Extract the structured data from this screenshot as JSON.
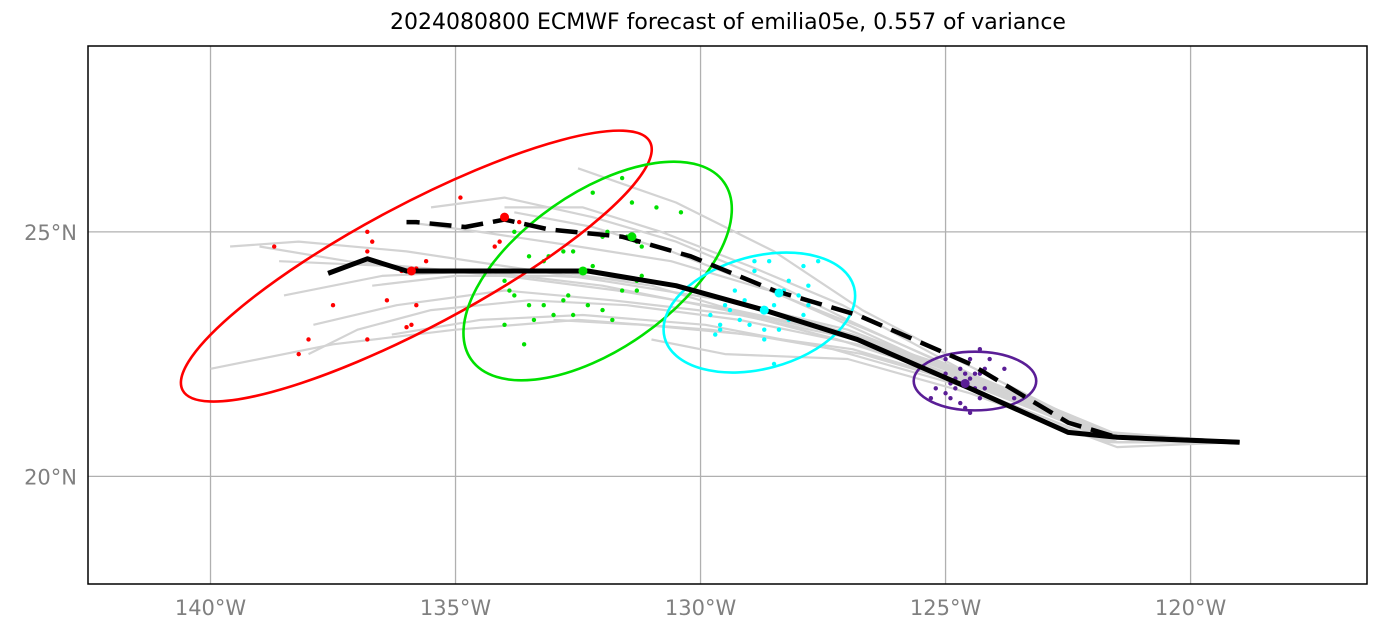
{
  "chart_data": {
    "type": "line",
    "title": "2024080800 ECMWF forecast of emilia05e, 0.557 of variance",
    "xlim": [
      -142.5,
      -116.4
    ],
    "ylim": [
      17.8,
      28.8
    ],
    "x_ticks": [
      -140,
      -135,
      -130,
      -125,
      -120
    ],
    "x_tick_labels": [
      "140°W",
      "135°W",
      "130°W",
      "125°W",
      "120°W"
    ],
    "y_ticks": [
      20,
      25
    ],
    "y_tick_labels": [
      "20°N",
      "25°N"
    ],
    "grid": true,
    "colors": {
      "ensemble": "#d3d3d3",
      "mean_track": "#000000",
      "t1": "#ff0000",
      "t2": "#00e000",
      "t3": "#00ffff",
      "t4": "#5a1e96",
      "grid": "#b0b0b0"
    },
    "ensemble_tracks": [
      [
        [
          -119.0,
          20.7
        ],
        [
          -121.6,
          20.8
        ],
        [
          -124.5,
          22.0
        ],
        [
          -127.0,
          22.9
        ],
        [
          -129.0,
          23.3
        ],
        [
          -131.0,
          23.9
        ],
        [
          -133.0,
          24.2
        ],
        [
          -135.0,
          24.2
        ],
        [
          -137.2,
          24.4
        ],
        [
          -139.0,
          24.7
        ]
      ],
      [
        [
          -119.0,
          20.7
        ],
        [
          -121.5,
          20.7
        ],
        [
          -124.3,
          21.9
        ],
        [
          -126.8,
          22.7
        ],
        [
          -129.2,
          23.2
        ],
        [
          -131.5,
          23.5
        ],
        [
          -133.5,
          23.6
        ],
        [
          -135.5,
          23.4
        ],
        [
          -137.0,
          23.0
        ],
        [
          -138.0,
          22.5
        ]
      ],
      [
        [
          -119.0,
          20.7
        ],
        [
          -121.7,
          20.9
        ],
        [
          -124.6,
          22.1
        ],
        [
          -127.0,
          23.2
        ],
        [
          -128.6,
          24.0
        ],
        [
          -130.5,
          24.8
        ],
        [
          -132.2,
          25.3
        ],
        [
          -134.0,
          25.7
        ],
        [
          -135.5,
          25.5
        ]
      ],
      [
        [
          -119.0,
          20.7
        ],
        [
          -121.8,
          20.9
        ],
        [
          -124.6,
          22.3
        ],
        [
          -126.7,
          23.4
        ],
        [
          -128.5,
          24.6
        ],
        [
          -130.5,
          25.6
        ],
        [
          -132.5,
          26.3
        ]
      ],
      [
        [
          -119.0,
          20.7
        ],
        [
          -121.4,
          20.8
        ],
        [
          -124.4,
          21.9
        ],
        [
          -127.2,
          22.8
        ],
        [
          -129.5,
          23.4
        ],
        [
          -132.0,
          23.9
        ],
        [
          -134.5,
          24.2
        ],
        [
          -136.5,
          24.1
        ],
        [
          -138.5,
          23.7
        ]
      ],
      [
        [
          -119.0,
          20.7
        ],
        [
          -121.6,
          20.7
        ],
        [
          -124.2,
          21.8
        ],
        [
          -126.9,
          22.6
        ],
        [
          -129.8,
          23.0
        ],
        [
          -132.5,
          23.2
        ],
        [
          -135.0,
          23.0
        ],
        [
          -137.5,
          22.7
        ],
        [
          -140.0,
          22.2
        ]
      ],
      [
        [
          -119.0,
          20.7
        ],
        [
          -121.5,
          20.6
        ],
        [
          -124.5,
          21.7
        ],
        [
          -127.0,
          22.4
        ],
        [
          -129.5,
          22.5
        ],
        [
          -131.0,
          22.8
        ]
      ],
      [
        [
          -119.0,
          20.7
        ],
        [
          -121.7,
          20.8
        ],
        [
          -124.4,
          22.0
        ],
        [
          -127.0,
          23.0
        ],
        [
          -129.5,
          23.6
        ],
        [
          -132.0,
          24.0
        ],
        [
          -134.0,
          24.3
        ],
        [
          -136.0,
          24.6
        ],
        [
          -138.2,
          24.8
        ],
        [
          -139.6,
          24.7
        ]
      ],
      [
        [
          -119.0,
          20.7
        ],
        [
          -121.6,
          20.8
        ],
        [
          -124.3,
          22.0
        ],
        [
          -126.6,
          23.0
        ],
        [
          -128.6,
          23.8
        ],
        [
          -130.6,
          24.4
        ],
        [
          -132.5,
          24.7
        ],
        [
          -134.5,
          25.0
        ],
        [
          -136.0,
          25.2
        ]
      ],
      [
        [
          -119.0,
          20.7
        ],
        [
          -121.5,
          20.7
        ],
        [
          -124.4,
          21.9
        ],
        [
          -126.8,
          22.8
        ],
        [
          -129.2,
          23.3
        ],
        [
          -131.8,
          23.6
        ],
        [
          -134.0,
          23.8
        ],
        [
          -136.2,
          23.5
        ],
        [
          -137.9,
          23.1
        ]
      ],
      [
        [
          -119.0,
          20.7
        ],
        [
          -121.8,
          20.8
        ],
        [
          -124.7,
          22.2
        ],
        [
          -127.1,
          23.5
        ],
        [
          -129.0,
          24.3
        ],
        [
          -130.8,
          25.0
        ],
        [
          -132.4,
          25.5
        ],
        [
          -134.0,
          25.5
        ]
      ],
      [
        [
          -119.0,
          20.7
        ],
        [
          -121.6,
          20.9
        ],
        [
          -124.5,
          22.1
        ],
        [
          -126.9,
          22.9
        ],
        [
          -129.0,
          23.5
        ],
        [
          -131.0,
          24.0
        ],
        [
          -133.0,
          24.1
        ],
        [
          -135.0,
          24.1
        ],
        [
          -136.7,
          23.9
        ]
      ],
      [
        [
          -119.0,
          20.7
        ],
        [
          -121.7,
          20.7
        ],
        [
          -124.5,
          21.8
        ],
        [
          -127.3,
          22.6
        ],
        [
          -129.9,
          23.1
        ],
        [
          -132.4,
          23.3
        ],
        [
          -134.5,
          23.2
        ],
        [
          -136.3,
          22.9
        ]
      ],
      [
        [
          -119.0,
          20.7
        ],
        [
          -121.6,
          20.8
        ],
        [
          -124.6,
          22.0
        ],
        [
          -127.0,
          23.1
        ],
        [
          -128.8,
          23.9
        ],
        [
          -130.6,
          24.6
        ],
        [
          -132.2,
          25.1
        ],
        [
          -133.8,
          25.4
        ]
      ],
      [
        [
          -119.0,
          20.7
        ],
        [
          -121.5,
          20.7
        ],
        [
          -124.3,
          21.8
        ],
        [
          -126.7,
          22.5
        ],
        [
          -129.0,
          22.9
        ],
        [
          -131.2,
          23.1
        ],
        [
          -133.0,
          23.2
        ]
      ],
      [
        [
          -119.0,
          20.7
        ],
        [
          -121.6,
          20.8
        ],
        [
          -124.4,
          22.0
        ],
        [
          -126.9,
          22.9
        ],
        [
          -129.3,
          23.4
        ],
        [
          -131.7,
          23.8
        ],
        [
          -134.0,
          24.1
        ],
        [
          -136.3,
          24.3
        ],
        [
          -138.6,
          24.4
        ]
      ]
    ],
    "mean_track": [
      [
        -119.0,
        20.7
      ],
      [
        -121.5,
        20.8
      ],
      [
        -122.5,
        20.9
      ],
      [
        -124.5,
        21.8
      ],
      [
        -126.8,
        22.8
      ],
      [
        -128.7,
        23.4
      ],
      [
        -130.5,
        23.9
      ],
      [
        -132.3,
        24.2
      ],
      [
        -134.0,
        24.2
      ],
      [
        -136.0,
        24.2
      ],
      [
        -136.8,
        24.45
      ],
      [
        -137.6,
        24.15
      ]
    ],
    "control_track": [
      [
        -119.0,
        20.7
      ],
      [
        -121.5,
        20.8
      ],
      [
        -122.5,
        21.1
      ],
      [
        -124.5,
        22.3
      ],
      [
        -126.8,
        23.3
      ],
      [
        -128.5,
        23.8
      ],
      [
        -130.2,
        24.5
      ],
      [
        -131.6,
        24.9
      ],
      [
        -133.1,
        25.05
      ],
      [
        -134.0,
        25.25
      ],
      [
        -134.8,
        25.1
      ],
      [
        -135.8,
        25.2
      ],
      [
        -136.0,
        25.2
      ]
    ],
    "mean_positions": [
      {
        "lon": -135.9,
        "lat": 24.2,
        "color": "#ff0000"
      },
      {
        "lon": -132.4,
        "lat": 24.2,
        "color": "#00e000"
      },
      {
        "lon": -128.7,
        "lat": 23.4,
        "color": "#00ffff"
      },
      {
        "lon": -124.6,
        "lat": 21.9,
        "color": "#5a1e96"
      }
    ],
    "control_positions": [
      {
        "lon": -134.0,
        "lat": 25.3,
        "color": "#ff0000"
      },
      {
        "lon": -131.4,
        "lat": 24.9,
        "color": "#00e000"
      },
      {
        "lon": -128.4,
        "lat": 23.75,
        "color": "#00ffff"
      }
    ],
    "ellipses": [
      {
        "lon": -135.8,
        "lat": 24.3,
        "a": 5.4,
        "b": 1.25,
        "angle_deg": 28,
        "color": "#ff0000"
      },
      {
        "lon": -132.1,
        "lat": 24.2,
        "a": 3.15,
        "b": 1.6,
        "angle_deg": 35,
        "color": "#00e000"
      },
      {
        "lon": -128.8,
        "lat": 23.35,
        "a": 2.0,
        "b": 1.15,
        "angle_deg": 15,
        "color": "#00ffff"
      },
      {
        "lon": -124.4,
        "lat": 21.95,
        "a": 1.25,
        "b": 0.6,
        "angle_deg": 0,
        "color": "#5a1e96"
      }
    ],
    "member_points": [
      {
        "color": "#ff0000",
        "points": [
          [
            -138.7,
            24.7
          ],
          [
            -136.8,
            25.0
          ],
          [
            -136.7,
            24.8
          ],
          [
            -136.8,
            24.6
          ],
          [
            -135.8,
            24.25
          ],
          [
            -136.1,
            24.2
          ],
          [
            -135.6,
            24.4
          ],
          [
            -134.9,
            25.7
          ],
          [
            -133.7,
            25.2
          ],
          [
            -134.2,
            24.7
          ],
          [
            -134.1,
            24.8
          ],
          [
            -136.4,
            23.6
          ],
          [
            -137.5,
            23.5
          ],
          [
            -135.9,
            23.1
          ],
          [
            -136.0,
            23.05
          ],
          [
            -135.8,
            23.5
          ],
          [
            -136.8,
            22.8
          ],
          [
            -138.0,
            22.8
          ],
          [
            -138.2,
            22.5
          ]
        ]
      },
      {
        "color": "#00e000",
        "points": [
          [
            -133.8,
            25.0
          ],
          [
            -133.5,
            24.5
          ],
          [
            -133.2,
            24.4
          ],
          [
            -133.1,
            24.5
          ],
          [
            -132.8,
            24.6
          ],
          [
            -132.6,
            24.6
          ],
          [
            -133.9,
            23.8
          ],
          [
            -133.8,
            23.7
          ],
          [
            -134.0,
            24.0
          ],
          [
            -133.5,
            23.5
          ],
          [
            -133.2,
            23.5
          ],
          [
            -132.7,
            23.7
          ],
          [
            -132.8,
            23.6
          ],
          [
            -133.0,
            23.3
          ],
          [
            -132.6,
            23.3
          ],
          [
            -133.4,
            23.2
          ],
          [
            -134.0,
            23.1
          ],
          [
            -133.6,
            22.7
          ],
          [
            -132.3,
            23.5
          ],
          [
            -132.0,
            23.4
          ],
          [
            -131.8,
            23.2
          ],
          [
            -132.2,
            24.3
          ],
          [
            -131.3,
            24.0
          ],
          [
            -131.2,
            24.1
          ],
          [
            -131.6,
            23.8
          ],
          [
            -131.3,
            23.8
          ],
          [
            -131.5,
            24.9
          ],
          [
            -131.9,
            25.0
          ],
          [
            -132.0,
            24.9
          ],
          [
            -131.3,
            24.8
          ],
          [
            -131.2,
            24.7
          ],
          [
            -131.4,
            25.6
          ],
          [
            -130.9,
            25.5
          ],
          [
            -130.4,
            25.4
          ],
          [
            -131.6,
            26.1
          ],
          [
            -132.2,
            25.8
          ]
        ]
      },
      {
        "color": "#00ffff",
        "points": [
          [
            -129.7,
            22.9
          ],
          [
            -129.6,
            23.1
          ],
          [
            -129.8,
            23.3
          ],
          [
            -129.4,
            23.4
          ],
          [
            -129.2,
            23.2
          ],
          [
            -129.0,
            23.1
          ],
          [
            -129.1,
            23.6
          ],
          [
            -128.9,
            24.2
          ],
          [
            -128.9,
            24.4
          ],
          [
            -128.6,
            24.4
          ],
          [
            -128.2,
            24.0
          ],
          [
            -128.0,
            23.7
          ],
          [
            -127.8,
            23.9
          ],
          [
            -127.9,
            24.3
          ],
          [
            -127.6,
            24.4
          ],
          [
            -127.8,
            23.5
          ],
          [
            -127.9,
            23.3
          ],
          [
            -128.2,
            23.2
          ],
          [
            -128.4,
            23.0
          ],
          [
            -128.7,
            23.0
          ],
          [
            -128.7,
            22.8
          ],
          [
            -128.5,
            23.5
          ],
          [
            -128.5,
            22.3
          ],
          [
            -129.5,
            23.5
          ],
          [
            -129.3,
            23.8
          ],
          [
            -128.3,
            23.8
          ],
          [
            -129.6,
            23.0
          ]
        ]
      },
      {
        "color": "#5a1e96",
        "points": [
          [
            -124.9,
            21.6
          ],
          [
            -124.7,
            21.5
          ],
          [
            -124.5,
            21.3
          ],
          [
            -124.6,
            21.4
          ],
          [
            -125.0,
            21.7
          ],
          [
            -125.2,
            21.8
          ],
          [
            -124.3,
            21.6
          ],
          [
            -124.2,
            21.8
          ],
          [
            -124.0,
            22.0
          ],
          [
            -124.1,
            22.4
          ],
          [
            -124.3,
            22.6
          ],
          [
            -124.5,
            22.4
          ],
          [
            -124.7,
            22.2
          ],
          [
            -124.6,
            22.1
          ],
          [
            -124.8,
            22.0
          ],
          [
            -124.4,
            22.1
          ],
          [
            -124.5,
            22.0
          ],
          [
            -124.3,
            22.1
          ],
          [
            -124.2,
            22.2
          ],
          [
            -124.7,
            21.9
          ],
          [
            -124.9,
            21.9
          ],
          [
            -124.8,
            21.8
          ],
          [
            -125.0,
            22.1
          ],
          [
            -124.4,
            21.8
          ],
          [
            -123.6,
            21.6
          ],
          [
            -123.8,
            22.2
          ],
          [
            -125.3,
            21.6
          ],
          [
            -125.0,
            22.4
          ]
        ]
      }
    ]
  }
}
